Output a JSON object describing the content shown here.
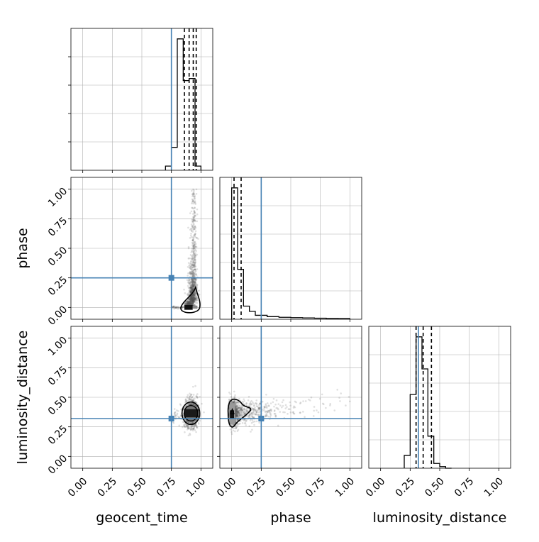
{
  "chart_data": {
    "type": "corner",
    "parameters": [
      "geocent_time",
      "phase",
      "luminosity_distance"
    ],
    "truths": {
      "geocent_time": 0.75,
      "phase": 0.25,
      "luminosity_distance": 0.32
    },
    "colors": {
      "truth": "#4682b4",
      "hist": "#000000",
      "grid": "#b0b0b0",
      "scatter": "#555555"
    },
    "ticks": [
      "0.00",
      "0.25",
      "0.50",
      "0.75",
      "1.00"
    ],
    "range": [
      -0.1,
      1.1
    ],
    "grid": true,
    "histograms": [
      {
        "param": "geocent_time",
        "bin_edges": [
          0.7,
          0.75,
          0.8,
          0.85,
          0.9,
          0.95,
          1.0
        ],
        "counts": [
          2,
          11,
          63,
          43,
          44,
          2
        ],
        "quantiles": [
          0.86,
          0.9,
          0.935,
          0.96
        ]
      },
      {
        "param": "phase",
        "bin_edges": [
          0.0,
          0.05,
          0.1,
          0.15,
          0.2,
          0.3,
          0.4,
          0.5,
          0.6,
          0.7,
          0.8,
          0.9,
          1.0
        ],
        "counts": [
          100,
          38,
          10,
          6,
          3,
          2,
          1.5,
          1.2,
          1,
          0.8,
          0.6,
          0.5
        ],
        "quantiles": [
          0.02,
          0.08
        ]
      },
      {
        "param": "luminosity_distance",
        "bin_edges": [
          0.2,
          0.25,
          0.3,
          0.35,
          0.4,
          0.45,
          0.5,
          0.55,
          0.6
        ],
        "counts": [
          8,
          46,
          82,
          62,
          20,
          3,
          1,
          0
        ],
        "quantiles": [
          0.3,
          0.36,
          0.43
        ]
      }
    ],
    "panels_2d": [
      {
        "x": "geocent_time",
        "y": "phase",
        "truth_point": [
          0.75,
          0.25
        ]
      },
      {
        "x": "geocent_time",
        "y": "luminosity_distance",
        "truth_point": [
          0.75,
          0.32
        ]
      },
      {
        "x": "phase",
        "y": "luminosity_distance",
        "truth_point": [
          0.25,
          0.32
        ]
      }
    ]
  }
}
